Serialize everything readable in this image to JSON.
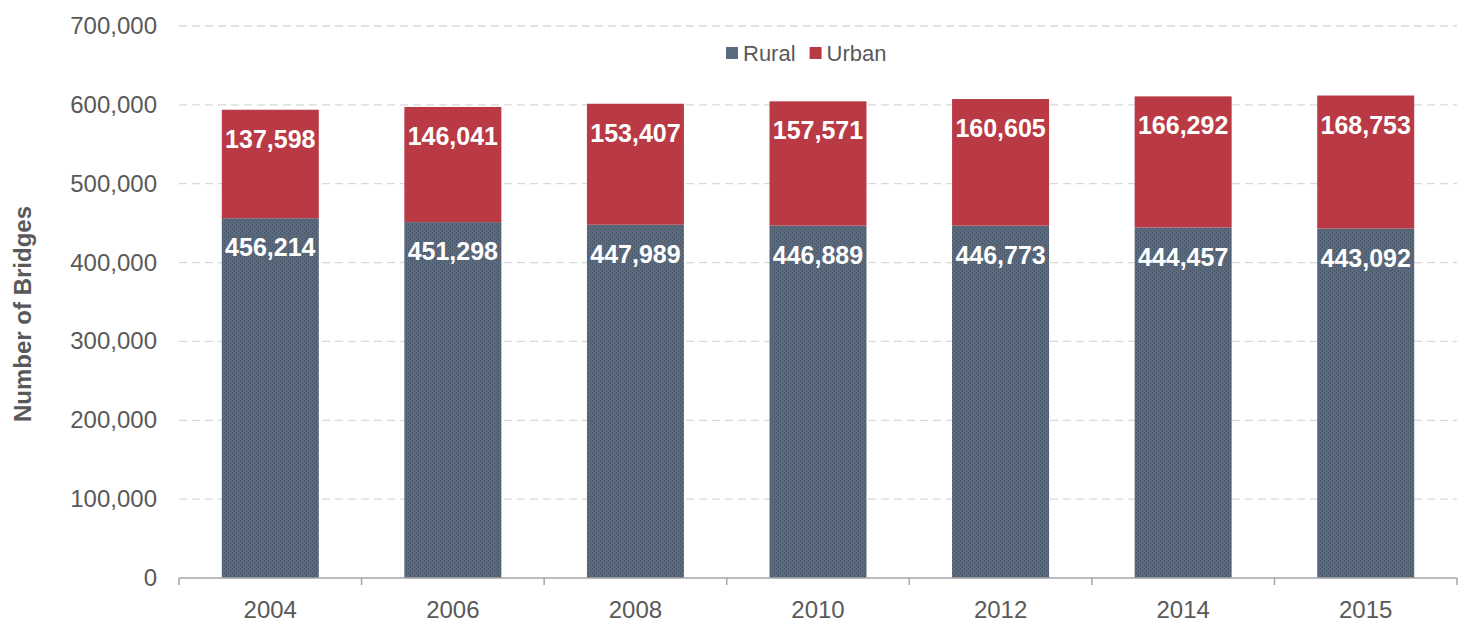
{
  "chart_data": {
    "type": "bar",
    "stacked": true,
    "data_labels": true,
    "grid": true,
    "legend": "top",
    "y_label": "Number of Bridges",
    "categories": [
      "2004",
      "2006",
      "2008",
      "2010",
      "2012",
      "2014",
      "2015"
    ],
    "series": [
      {
        "name": "Rural",
        "color": "#5b6b7f",
        "values": [
          456214,
          451298,
          447989,
          446889,
          446773,
          444457,
          443092
        ],
        "value_labels": [
          "456,214",
          "451,298",
          "447,989",
          "446,889",
          "446,773",
          "444,457",
          "443,092"
        ]
      },
      {
        "name": "Urban",
        "color": "#b93a45",
        "values": [
          137598,
          146041,
          153407,
          157571,
          160605,
          166292,
          168753
        ],
        "value_labels": [
          "137,598",
          "146,041",
          "153,407",
          "157,571",
          "160,605",
          "166,292",
          "168,753"
        ]
      }
    ],
    "ylim": [
      0,
      700000
    ],
    "yticks": [
      0,
      {
        "value": 100000,
        "label": "100,000"
      },
      {
        "value": 200000,
        "label": "200,000"
      },
      {
        "value": 300000,
        "label": "300,000"
      },
      {
        "value": 400000,
        "label": "400,000"
      },
      {
        "value": 500000,
        "label": "500,000"
      },
      {
        "value": 600000,
        "label": "600,000"
      },
      {
        "value": 700000,
        "label": "700,000"
      }
    ]
  }
}
